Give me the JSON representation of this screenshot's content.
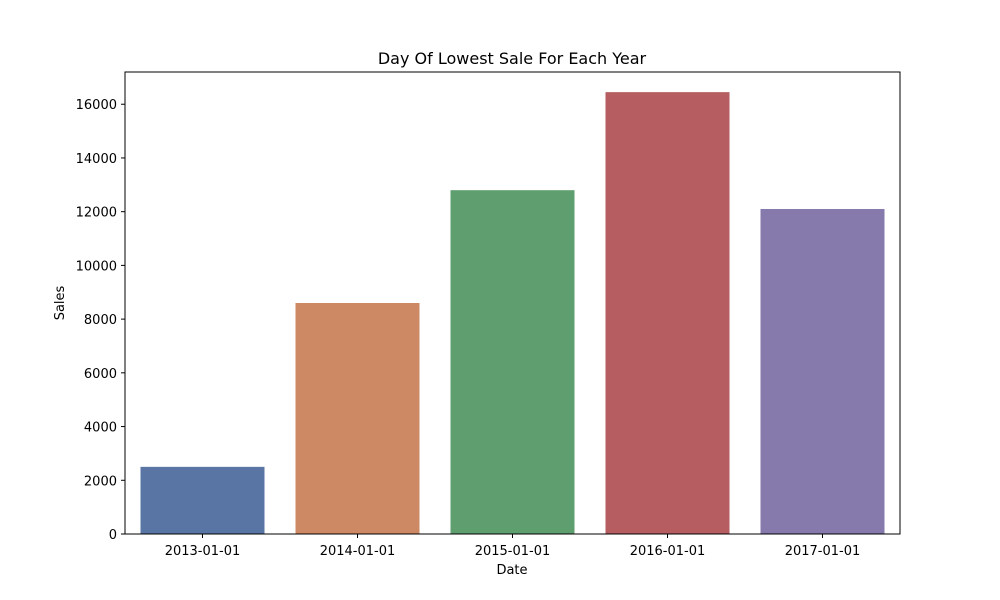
{
  "chart_data": {
    "type": "bar",
    "title": "Day Of Lowest Sale For Each Year",
    "xlabel": "Date",
    "ylabel": "Sales",
    "categories": [
      "2013-01-01",
      "2014-01-01",
      "2015-01-01",
      "2016-01-01",
      "2017-01-01"
    ],
    "values": [
      2500,
      8600,
      12800,
      16450,
      12100
    ],
    "colors": [
      "#5975a4",
      "#cc8963",
      "#5f9e6e",
      "#b55d60",
      "#857aab"
    ],
    "ylim": [
      0,
      17200
    ],
    "yticks": [
      0,
      2000,
      4000,
      6000,
      8000,
      10000,
      12000,
      14000,
      16000
    ],
    "grid": false,
    "legend": "none"
  }
}
